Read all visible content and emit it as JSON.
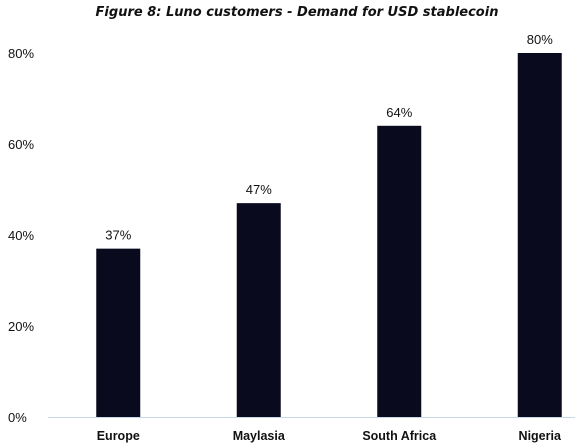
{
  "chart_data": {
    "type": "bar",
    "title": "Figure 8: Luno customers - Demand for USD stablecoin",
    "categories": [
      "Europe",
      "Maylasia",
      "South Africa",
      "Nigeria"
    ],
    "values": [
      37,
      47,
      64,
      80
    ],
    "value_labels": [
      "37%",
      "47%",
      "64%",
      "80%"
    ],
    "yticks": [
      0,
      20,
      40,
      60,
      80
    ],
    "ytick_labels": [
      "0%",
      "20%",
      "40%",
      "60%",
      "80%"
    ],
    "ylim": [
      0,
      80
    ],
    "xlabel": "",
    "ylabel": "",
    "grid": false,
    "bar_color": "#0a0a1e",
    "axis_color": "#c8d7ea"
  }
}
